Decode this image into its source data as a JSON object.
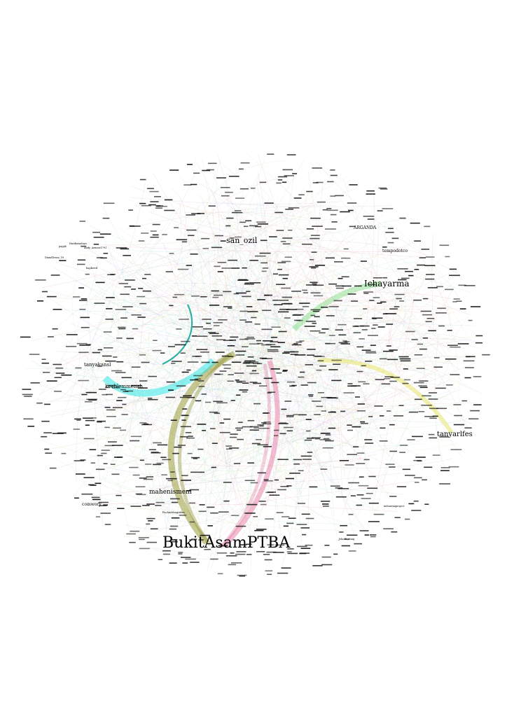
{
  "graph": {
    "labels": [
      {
        "id": "bukitasam",
        "text": "BukitAsamPTBA",
        "size": "huge"
      },
      {
        "id": "ichayarma",
        "text": "Ichayarma",
        "size": "large",
        "color": "#2a5a2a"
      },
      {
        "id": "san_ozil",
        "text": "san_ozil",
        "size": "large"
      },
      {
        "id": "tanyarlfes",
        "text": "tanyarlfes",
        "size": "large"
      },
      {
        "id": "mahenismem",
        "text": "mahenismem",
        "size": "medium"
      },
      {
        "id": "arganda",
        "text": "ARGANDA",
        "size": "small"
      },
      {
        "id": "tempodotco",
        "text": "tempodotco",
        "size": "small",
        "color": "#6a5a2a"
      },
      {
        "id": "ketb",
        "text": "ketb",
        "size": "small"
      },
      {
        "id": "tanyakansl",
        "text": "tanyakansl",
        "size": "medium"
      },
      {
        "id": "keeblemmenah",
        "text": "keeblemmenah",
        "size": "medium"
      },
      {
        "id": "comwory",
        "text": "comwory",
        "size": "small"
      },
      {
        "id": "bapkwed",
        "text": "bapkwed",
        "size": "tiny"
      },
      {
        "id": "Hardiawaluyo",
        "text": "Hardiawaluyo",
        "size": "tiny"
      },
      {
        "id": "Andy_Azmaw",
        "text": "Andy_Azmaw1791",
        "size": "tiny"
      },
      {
        "id": "papyk",
        "text": "papyk",
        "size": "tiny"
      },
      {
        "id": "DiandDemo",
        "text": "DiandDemo_18",
        "size": "tiny"
      },
      {
        "id": "PuchinWan",
        "text": "PuchinWangsidan",
        "size": "tiny"
      },
      {
        "id": "indonesiaproject",
        "text": "indonesiaproject",
        "size": "tiny"
      },
      {
        "id": "jokoid",
        "text": "_JokoID_dong",
        "size": "tiny"
      }
    ],
    "colors": {
      "olive": "#9a9a3a",
      "cyan": "#33e6e6",
      "teal": "#1aa99a",
      "pink": "#e87aa6",
      "green": "#7ad67a",
      "yellow": "#e6e66a",
      "lightblue": "#9ad0f0"
    }
  }
}
